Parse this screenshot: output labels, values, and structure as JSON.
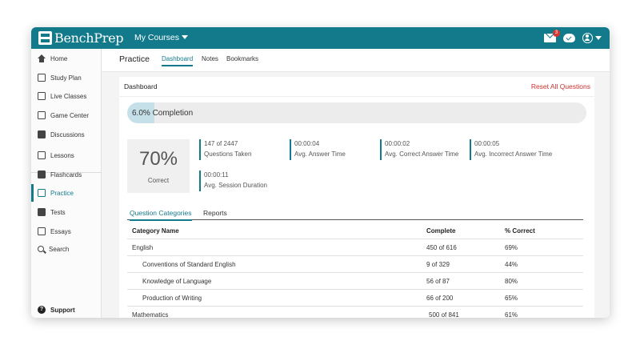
{
  "topbar": {
    "logo_text": "BenchPrep",
    "courses_label": "My Courses",
    "mail_badge": "3",
    "color": "#137a8c"
  },
  "sidebar": {
    "items": [
      {
        "label": "Home",
        "icon": "home-icon"
      },
      {
        "label": "Study Plan",
        "icon": "study-plan-icon"
      },
      {
        "label": "Live Classes",
        "icon": "live-classes-icon"
      },
      {
        "label": "Game Center",
        "icon": "game-center-icon"
      },
      {
        "label": "Discussions",
        "icon": "discussions-icon"
      },
      {
        "label": "Lessons",
        "icon": "lessons-icon"
      },
      {
        "label": "Flashcards",
        "icon": "flashcards-icon"
      },
      {
        "label": "Practice",
        "icon": "practice-icon",
        "active": true
      },
      {
        "label": "Tests",
        "icon": "tests-icon"
      },
      {
        "label": "Essays",
        "icon": "essays-icon"
      },
      {
        "label": "Search",
        "icon": "search-icon"
      }
    ],
    "support_label": "Support"
  },
  "subnav": {
    "title": "Practice",
    "tabs": [
      "Dashboard",
      "Notes",
      "Bookmarks"
    ]
  },
  "dashboard": {
    "title": "Dashboard",
    "reset_label": "Reset All Questions",
    "completion_text": "6.0% Completion",
    "completion_fraction": 0.06,
    "correct_pct": "70%",
    "correct_label": "Correct",
    "stats": [
      {
        "value": "147 of 2447",
        "label": "Questions Taken"
      },
      {
        "value": "00:00:04",
        "label": "Avg. Answer Time"
      },
      {
        "value": "00:00:02",
        "label": "Avg. Correct Answer Time"
      },
      {
        "value": "00:00:05",
        "label": "Avg. Incorrect Answer Time"
      },
      {
        "value": "00:00:11",
        "label": "Avg. Session Duration"
      }
    ],
    "tabs": [
      "Question Categories",
      "Reports"
    ]
  },
  "table": {
    "headers": [
      "Category Name",
      "Complete",
      "% Correct"
    ],
    "rows": [
      {
        "name": "English",
        "complete": "450 of 616",
        "correct": "69%"
      },
      {
        "name": "Conventions of Standard English",
        "complete": "9 of 329",
        "correct": "44%"
      },
      {
        "name": "Knowledge of Language",
        "complete": "56 of 87",
        "correct": "80%"
      },
      {
        "name": "Production of Writing",
        "complete": "66 of 200",
        "correct": "65%"
      },
      {
        "name": "Mathematics",
        "complete": "500 of 841",
        "correct": "61%"
      }
    ]
  }
}
